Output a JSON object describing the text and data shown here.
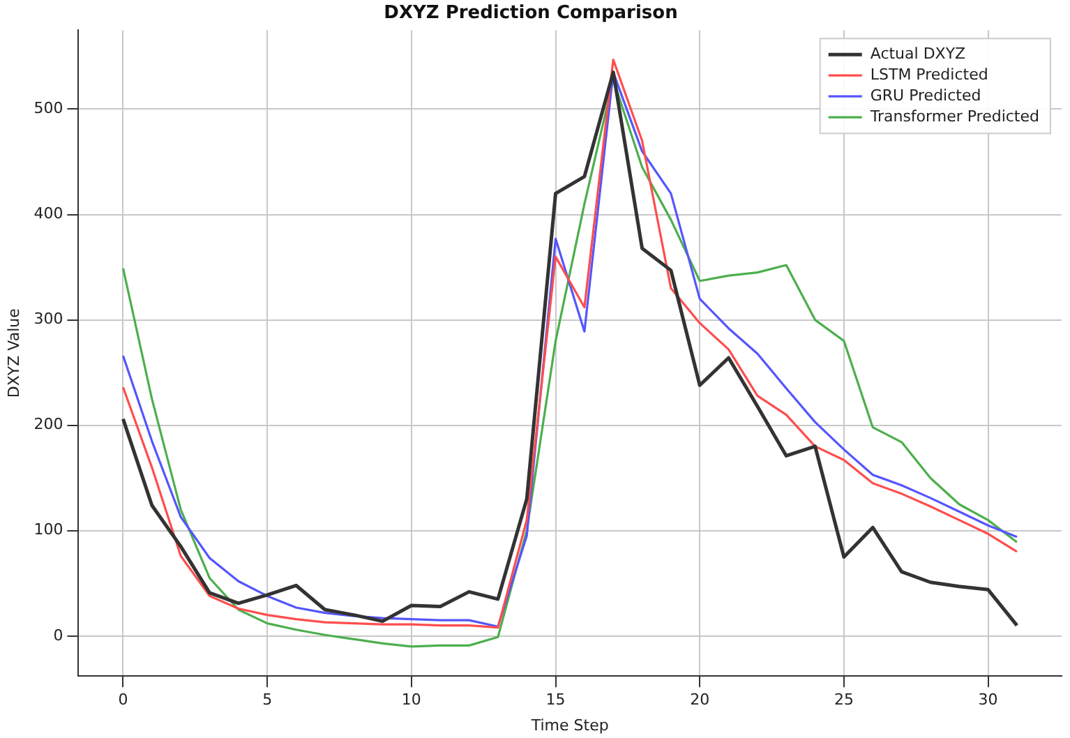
{
  "chart_data": {
    "type": "line",
    "title": "DXYZ Prediction Comparison",
    "xlabel": "Time Step",
    "ylabel": "DXYZ Value",
    "x": [
      0,
      1,
      2,
      3,
      4,
      5,
      6,
      7,
      8,
      9,
      10,
      11,
      12,
      13,
      14,
      15,
      16,
      17,
      18,
      19,
      20,
      21,
      22,
      23,
      24,
      25,
      26,
      27,
      28,
      29,
      30,
      31
    ],
    "xlim": [
      -1.55,
      32.55
    ],
    "xticks": [
      0,
      5,
      10,
      15,
      20,
      25,
      30
    ],
    "ylim": [
      -38,
      575
    ],
    "yticks": [
      0,
      100,
      200,
      300,
      400,
      500
    ],
    "grid": true,
    "legend": "top right",
    "line_style": "solid",
    "marker": "none",
    "series": [
      {
        "name": "Actual DXYZ",
        "color": "#333333",
        "values": [
          206,
          124,
          85,
          41,
          31,
          39,
          48,
          25,
          20,
          14,
          29,
          28,
          42,
          35,
          130,
          420,
          436,
          535,
          368,
          347,
          238,
          264,
          218,
          171,
          180,
          75,
          103,
          61,
          51,
          47,
          44,
          10
        ]
      },
      {
        "name": "LSTM Predicted",
        "color": "#ff4d4d",
        "values": [
          236,
          160,
          76,
          38,
          26,
          20,
          16,
          13,
          12,
          11,
          11,
          10,
          10,
          8,
          110,
          360,
          312,
          547,
          470,
          330,
          297,
          272,
          228,
          210,
          180,
          167,
          145,
          135,
          123,
          110,
          97,
          80
        ]
      },
      {
        "name": "GRU Predicted",
        "color": "#5555ff",
        "values": [
          266,
          185,
          113,
          74,
          52,
          38,
          27,
          22,
          19,
          17,
          16,
          15,
          15,
          9,
          95,
          377,
          289,
          535,
          460,
          420,
          320,
          292,
          268,
          235,
          203,
          177,
          153,
          143,
          131,
          118,
          105,
          94
        ]
      },
      {
        "name": "Transformer Predicted",
        "color": "#4caf4c",
        "values": [
          349,
          225,
          120,
          55,
          25,
          12,
          6,
          1,
          -3,
          -7,
          -10,
          -9,
          -9,
          -1,
          100,
          280,
          410,
          528,
          445,
          395,
          337,
          342,
          345,
          352,
          300,
          280,
          198,
          184,
          150,
          125,
          110,
          89
        ]
      }
    ]
  }
}
